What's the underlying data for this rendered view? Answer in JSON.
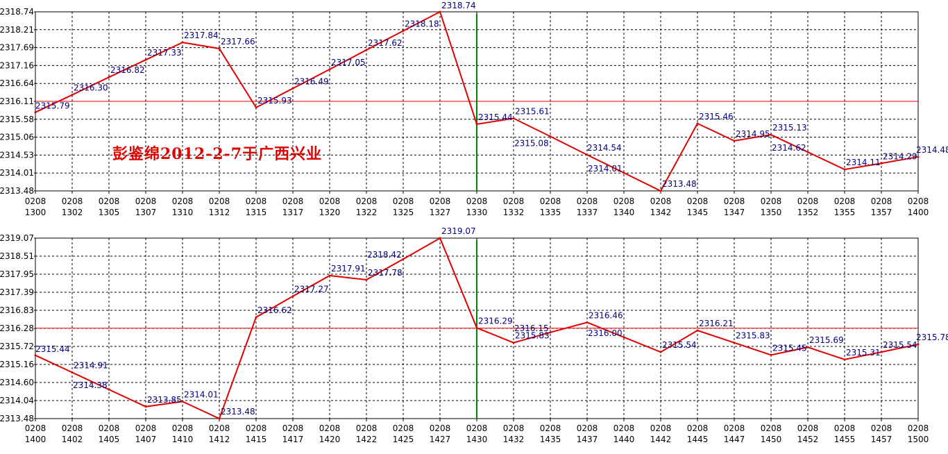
{
  "watermark": "彭鉴绵2012-2-7于广西兴业",
  "colors": {
    "line": "#e00000",
    "label": "#000080",
    "grid": "#000000",
    "ref": "#e00000",
    "divider": "#008000"
  },
  "chart_data": [
    {
      "type": "line",
      "x_dates": [
        "0208",
        "0208",
        "0208",
        "0208",
        "0208",
        "0208",
        "0208",
        "0208",
        "0208",
        "0208",
        "0208",
        "0208",
        "0208",
        "0208",
        "0208",
        "0208",
        "0208",
        "0208",
        "0208",
        "0208",
        "0208",
        "0208",
        "0208",
        "0208",
        "0208"
      ],
      "x": [
        "1300",
        "1302",
        "1305",
        "1307",
        "1310",
        "1312",
        "1315",
        "1317",
        "1320",
        "1322",
        "1325",
        "1327",
        "1330",
        "1332",
        "1335",
        "1337",
        "1340",
        "1342",
        "1345",
        "1347",
        "1350",
        "1352",
        "1355",
        "1357",
        "1400"
      ],
      "values": [
        2315.79,
        2316.3,
        2316.82,
        2317.33,
        2317.84,
        2317.66,
        2315.93,
        2316.49,
        2317.05,
        2317.62,
        2318.18,
        2318.74,
        2315.44,
        2315.61,
        2315.08,
        2314.54,
        2314.01,
        2313.48,
        2315.46,
        2314.95,
        2315.13,
        2314.62,
        2314.11,
        2314.29,
        2314.48
      ],
      "y_ticks": [
        "2318.74",
        "2318.21",
        "2317.69",
        "2317.16",
        "2316.64",
        "2316.11",
        "2315.58",
        "2315.06",
        "2314.53",
        "2314.01",
        "2313.48"
      ],
      "ylim": [
        2313.48,
        2318.74
      ],
      "ref_line": 2316.11,
      "divider_x": "1330",
      "grid": true
    },
    {
      "type": "line",
      "x_dates": [
        "0208",
        "0208",
        "0208",
        "0208",
        "0208",
        "0208",
        "0208",
        "0208",
        "0208",
        "0208",
        "0208",
        "0208",
        "0208",
        "0208",
        "0208",
        "0208",
        "0208",
        "0208",
        "0208",
        "0208",
        "0208",
        "0208",
        "0208",
        "0208",
        "0208"
      ],
      "x": [
        "1400",
        "1402",
        "1405",
        "1407",
        "1410",
        "1412",
        "1415",
        "1417",
        "1420",
        "1422",
        "1425",
        "1427",
        "1430",
        "1432",
        "1435",
        "1437",
        "1440",
        "1442",
        "1445",
        "1447",
        "1450",
        "1452",
        "1455",
        "1457",
        "1500"
      ],
      "values": [
        2315.44,
        2314.91,
        2314.38,
        2313.85,
        2314.01,
        2313.48,
        2316.62,
        2317.27,
        2317.91,
        2317.78,
        2318.42,
        2319.07,
        2316.29,
        2315.83,
        2316.15,
        2316.46,
        2316.0,
        2315.54,
        2316.21,
        2315.83,
        2315.45,
        2315.69,
        2315.31,
        2315.54,
        2315.78
      ],
      "y_ticks": [
        "2319.07",
        "2318.51",
        "2317.95",
        "2317.39",
        "2316.83",
        "2316.28",
        "2315.72",
        "2315.16",
        "2314.60",
        "2314.04",
        "2313.48"
      ],
      "ylim": [
        2313.48,
        2319.07
      ],
      "ref_line": 2316.28,
      "divider_x": "1430",
      "grid": true
    }
  ]
}
